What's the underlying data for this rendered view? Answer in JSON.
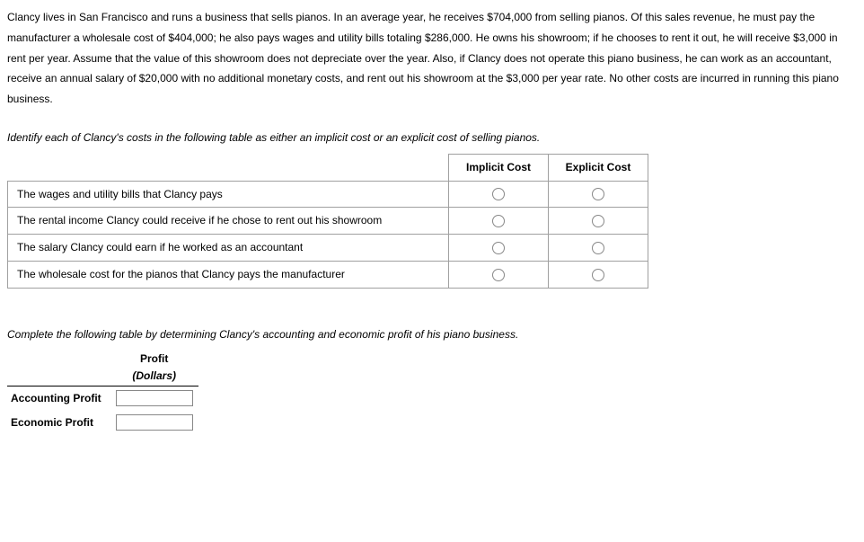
{
  "paragraph": "Clancy lives in San Francisco and runs a business that sells pianos. In an average year, he receives $704,000 from selling pianos. Of this sales revenue, he must pay the manufacturer a wholesale cost of $404,000; he also pays wages and utility bills totaling $286,000. He owns his showroom; if he chooses to rent it out, he will receive $3,000 in rent per year. Assume that the value of this showroom does not depreciate over the year. Also, if Clancy does not operate this piano business, he can work as an accountant, receive an annual salary of $20,000 with no additional monetary costs, and rent out his showroom at the $3,000 per year rate. No other costs are incurred in running this piano business.",
  "instruction1": "Identify each of Clancy's costs in the following table as either an implicit cost or an explicit cost of selling pianos.",
  "cost_table": {
    "headers": {
      "implicit": "Implicit Cost",
      "explicit": "Explicit Cost"
    },
    "rows": [
      "The wages and utility bills that Clancy pays",
      "The rental income Clancy could receive if he chose to rent out his showroom",
      "The salary Clancy could earn if he worked as an accountant",
      "The wholesale cost for the pianos that Clancy pays the manufacturer"
    ]
  },
  "instruction2": "Complete the following table by determining Clancy's accounting and economic profit of his piano business.",
  "profit_table": {
    "header_main": "Profit",
    "header_sub": "(Dollars)",
    "rows": {
      "accounting": "Accounting Profit",
      "economic": "Economic Profit"
    }
  }
}
